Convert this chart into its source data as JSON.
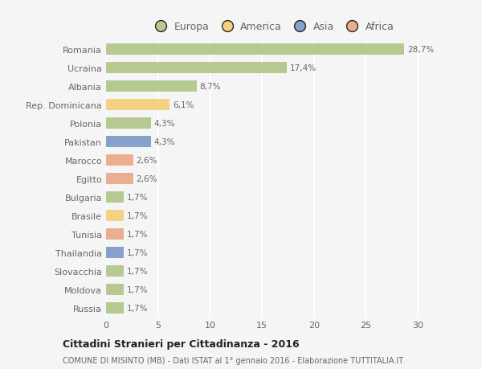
{
  "categories": [
    "Romania",
    "Ucraina",
    "Albania",
    "Rep. Dominicana",
    "Polonia",
    "Pakistan",
    "Marocco",
    "Egitto",
    "Bulgaria",
    "Brasile",
    "Tunisia",
    "Thailandia",
    "Slovacchia",
    "Moldova",
    "Russia"
  ],
  "values": [
    28.7,
    17.4,
    8.7,
    6.1,
    4.3,
    4.3,
    2.6,
    2.6,
    1.7,
    1.7,
    1.7,
    1.7,
    1.7,
    1.7,
    1.7
  ],
  "bar_colors": [
    "#a8c07a",
    "#a8c07a",
    "#a8c07a",
    "#f5c96a",
    "#a8c07a",
    "#6e8fc4",
    "#e8a07a",
    "#e8a07a",
    "#a8c07a",
    "#f5c96a",
    "#e8a07a",
    "#6e8fc4",
    "#a8c07a",
    "#a8c07a",
    "#a8c07a"
  ],
  "labels": [
    "28,7%",
    "17,4%",
    "8,7%",
    "6,1%",
    "4,3%",
    "4,3%",
    "2,6%",
    "2,6%",
    "1,7%",
    "1,7%",
    "1,7%",
    "1,7%",
    "1,7%",
    "1,7%",
    "1,7%"
  ],
  "legend_labels": [
    "Europa",
    "America",
    "Asia",
    "Africa"
  ],
  "legend_colors": [
    "#a8c07a",
    "#f5c96a",
    "#6e8fc4",
    "#e8a07a"
  ],
  "title": "Cittadini Stranieri per Cittadinanza - 2016",
  "subtitle": "COMUNE DI MISINTO (MB) - Dati ISTAT al 1° gennaio 2016 - Elaborazione TUTTITALIA.IT",
  "xlim": [
    0,
    32
  ],
  "background_color": "#f5f5f5",
  "grid_color": "#ffffff",
  "bar_alpha": 0.82
}
